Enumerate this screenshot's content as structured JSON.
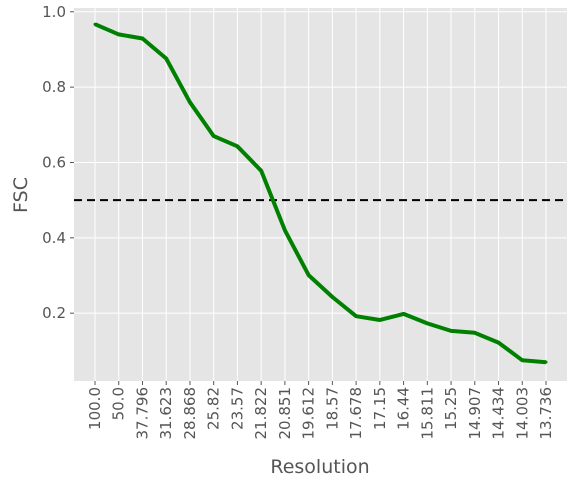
{
  "chart_data": {
    "type": "line",
    "xlabel": "Resolution",
    "ylabel": "FSC",
    "categories": [
      "100.0",
      "50.0",
      "37.796",
      "31.623",
      "28.868",
      "25.82",
      "23.57",
      "21.822",
      "20.851",
      "19.612",
      "18.57",
      "17.678",
      "17.15",
      "16.44",
      "15.811",
      "15.25",
      "14.907",
      "14.434",
      "14.003",
      "13.736"
    ],
    "series": [
      {
        "values": [
          0.967,
          0.94,
          0.929,
          0.876,
          0.76,
          0.67,
          0.643,
          0.578,
          0.42,
          0.301,
          0.243,
          0.192,
          0.182,
          0.198,
          0.173,
          0.153,
          0.148,
          0.122,
          0.075,
          0.07
        ],
        "color": "#008000"
      }
    ],
    "threshold": {
      "value": 0.5,
      "style": "dashed",
      "color": "#000000"
    },
    "ylim": [
      0.02,
      1.01
    ],
    "yticks": [
      0.2,
      0.4,
      0.6,
      0.8,
      1.0
    ],
    "ytick_labels": [
      "0.2",
      "0.4",
      "0.6",
      "0.8",
      "1.0"
    ],
    "grid": true,
    "background": "#e5e5e5",
    "grid_color": "#ffffff"
  }
}
